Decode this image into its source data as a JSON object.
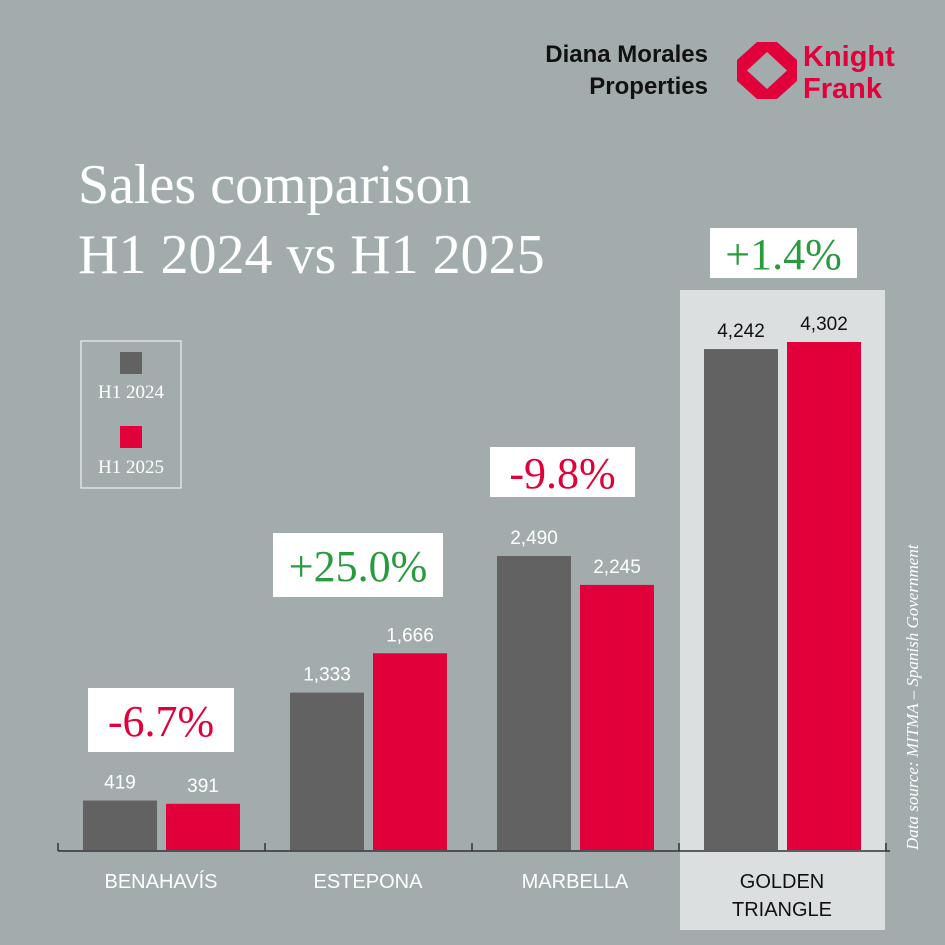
{
  "brand": {
    "partner_line1": "Diana Morales",
    "partner_line2": "Properties",
    "logo_line1": "Knight",
    "logo_line2": "Frank"
  },
  "title": {
    "line1": "Sales comparison",
    "line2": "H1 2024 vs H1 2025"
  },
  "source": "Data source:  MITMA – Spanish Government",
  "colors": {
    "background": "#a3acad",
    "h1_2024": "#626262",
    "h1_2025": "#e2003a",
    "positive": "#2a9a3e",
    "negative": "#e2003a",
    "highlight": "#dcdfdf"
  },
  "chart_data": {
    "type": "bar",
    "title": "Sales comparison H1 2024 vs H1 2025",
    "categories": [
      "BENAHAVÍS",
      "ESTEPONA",
      "MARBELLA",
      "GOLDEN TRIANGLE"
    ],
    "category_lines": [
      [
        "BENAHAVÍS"
      ],
      [
        "ESTEPONA"
      ],
      [
        "MARBELLA"
      ],
      [
        "GOLDEN",
        "TRIANGLE"
      ]
    ],
    "series": [
      {
        "name": "H1 2024",
        "values": [
          419,
          1333,
          2490,
          4242
        ],
        "labels": [
          "419",
          "1,333",
          "2,490",
          "4,242"
        ]
      },
      {
        "name": "H1 2025",
        "values": [
          391,
          1666,
          2245,
          4302
        ],
        "labels": [
          "391",
          "1,666",
          "2,245",
          "4,302"
        ]
      }
    ],
    "changes": [
      "-6.7%",
      "+25.0%",
      "-9.8%",
      "+1.4%"
    ],
    "change_signs": [
      -1,
      1,
      -1,
      1
    ],
    "highlighted_category": "GOLDEN TRIANGLE",
    "ylim": [
      0,
      4302
    ],
    "legend": {
      "placement": "left",
      "entries": [
        "H1 2024",
        "H1 2025"
      ]
    },
    "grid": false
  }
}
